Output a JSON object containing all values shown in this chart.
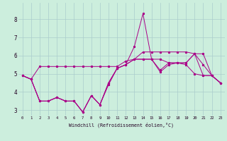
{
  "title": "",
  "xlabel": "Windchill (Refroidissement éolien,°C)",
  "ylabel": "",
  "background_color": "#cceedd",
  "grid_color": "#aacccc",
  "line_color": "#aa0088",
  "xlim": [
    -0.5,
    23.5
  ],
  "ylim": [
    2.7,
    8.9
  ],
  "xticks": [
    0,
    1,
    2,
    3,
    4,
    5,
    6,
    7,
    8,
    9,
    10,
    11,
    12,
    13,
    14,
    15,
    16,
    17,
    18,
    19,
    20,
    21,
    22,
    23
  ],
  "yticks": [
    3,
    4,
    5,
    6,
    7,
    8
  ],
  "series1": [
    4.9,
    4.7,
    5.4,
    5.4,
    5.4,
    5.4,
    5.4,
    5.4,
    5.4,
    5.4,
    5.4,
    5.4,
    5.7,
    5.8,
    6.2,
    6.2,
    6.2,
    6.2,
    6.2,
    6.2,
    6.1,
    6.1,
    4.9,
    4.5
  ],
  "series2": [
    4.9,
    4.7,
    3.5,
    3.5,
    3.7,
    3.5,
    3.5,
    2.9,
    3.8,
    3.3,
    4.5,
    5.3,
    5.5,
    6.5,
    8.3,
    5.8,
    5.1,
    5.5,
    5.6,
    5.6,
    6.1,
    5.5,
    4.9,
    4.5
  ],
  "series3": [
    4.9,
    4.7,
    3.5,
    3.5,
    3.7,
    3.5,
    3.5,
    2.9,
    3.8,
    3.3,
    4.5,
    5.3,
    5.5,
    5.8,
    5.8,
    5.8,
    5.2,
    5.6,
    5.6,
    5.5,
    5.0,
    4.9,
    4.9,
    4.5
  ],
  "series4": [
    4.9,
    4.7,
    3.5,
    3.5,
    3.7,
    3.5,
    3.5,
    2.9,
    3.8,
    3.3,
    4.4,
    5.3,
    5.5,
    5.8,
    5.8,
    5.8,
    5.8,
    5.6,
    5.6,
    5.6,
    6.1,
    4.9,
    4.9,
    4.5
  ]
}
